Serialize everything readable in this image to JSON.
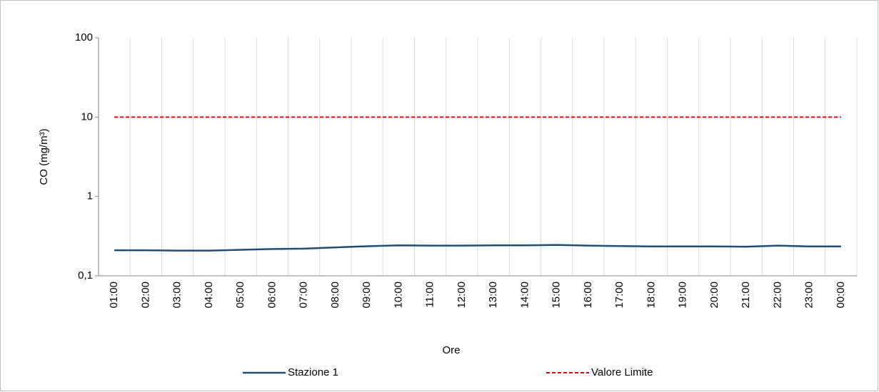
{
  "chart_data": {
    "type": "line",
    "xlabel": "Ore",
    "ylabel": "CO (mg/m³)",
    "categories": [
      "01:00",
      "02:00",
      "03:00",
      "04:00",
      "05:00",
      "06:00",
      "07:00",
      "08:00",
      "09:00",
      "10:00",
      "11:00",
      "12:00",
      "13:00",
      "14:00",
      "15:00",
      "16:00",
      "17:00",
      "18:00",
      "19:00",
      "20:00",
      "21:00",
      "22:00",
      "23:00",
      "00:00"
    ],
    "series": [
      {
        "name": "Stazione 1",
        "color": "#1f4e79",
        "dash": false,
        "values": [
          0.21,
          0.21,
          0.208,
          0.208,
          0.213,
          0.218,
          0.22,
          0.228,
          0.236,
          0.242,
          0.24,
          0.24,
          0.242,
          0.242,
          0.245,
          0.24,
          0.237,
          0.235,
          0.235,
          0.235,
          0.233,
          0.24,
          0.235,
          0.235
        ]
      },
      {
        "name": "Valore Limite",
        "color": "#e00000",
        "dash": true,
        "values": [
          10,
          10,
          10,
          10,
          10,
          10,
          10,
          10,
          10,
          10,
          10,
          10,
          10,
          10,
          10,
          10,
          10,
          10,
          10,
          10,
          10,
          10,
          10,
          10
        ]
      }
    ],
    "log_y": true,
    "ylim": [
      0.1,
      100
    ],
    "yticks": [
      {
        "value": 0.1,
        "label": "0,1"
      },
      1,
      10,
      100
    ],
    "xgrid": true,
    "grid": false,
    "legend": "bottom"
  }
}
